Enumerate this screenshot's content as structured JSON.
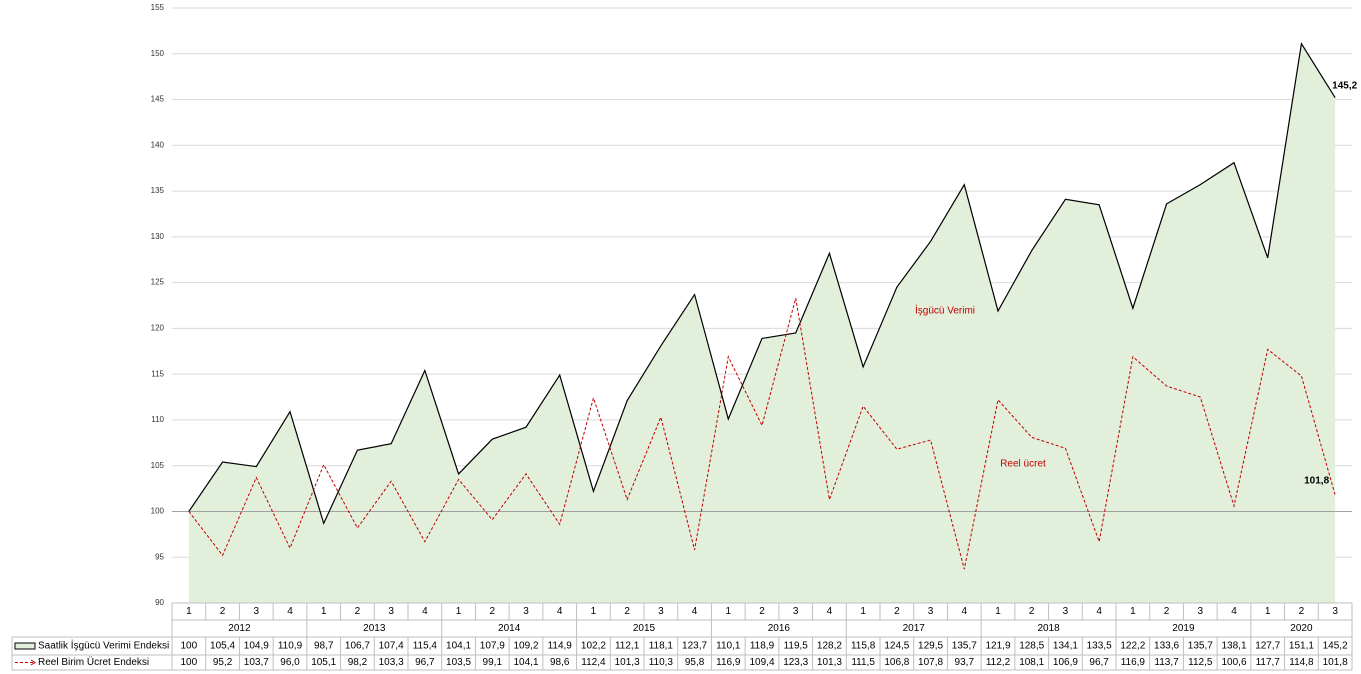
{
  "chart_data": {
    "type": "line",
    "categories": [
      "1",
      "2",
      "3",
      "4",
      "1",
      "2",
      "3",
      "4",
      "1",
      "2",
      "3",
      "4",
      "1",
      "2",
      "3",
      "4",
      "1",
      "2",
      "3",
      "4",
      "1",
      "2",
      "3",
      "4",
      "1",
      "2",
      "3",
      "4",
      "1",
      "2",
      "3",
      "4",
      "1",
      "2",
      "3"
    ],
    "groups": [
      "2012",
      "2013",
      "2014",
      "2015",
      "2016",
      "2017",
      "2018",
      "2019",
      "2020"
    ],
    "series": [
      {
        "name": "Saatlik İşgücü Verimi Endeksi",
        "color": "#000000",
        "fill": "#e2efda",
        "area": true,
        "values": [
          100,
          105.4,
          104.9,
          110.9,
          98.7,
          106.7,
          107.4,
          115.4,
          104.1,
          107.9,
          109.2,
          114.9,
          102.2,
          112.1,
          118.1,
          123.7,
          110.1,
          118.9,
          119.5,
          128.2,
          115.8,
          124.5,
          129.5,
          135.7,
          121.9,
          128.5,
          134.1,
          133.5,
          122.2,
          133.6,
          135.7,
          138.1,
          127.7,
          151.1,
          145.2
        ],
        "value_labels": [
          "100",
          "105,4",
          "104,9",
          "110,9",
          "98,7",
          "106,7",
          "107,4",
          "115,4",
          "104,1",
          "107,9",
          "109,2",
          "114,9",
          "102,2",
          "112,1",
          "118,1",
          "123,7",
          "110,1",
          "118,9",
          "119,5",
          "128,2",
          "115,8",
          "124,5",
          "129,5",
          "135,7",
          "121,9",
          "128,5",
          "134,1",
          "133,5",
          "122,2",
          "133,6",
          "135,7",
          "138,1",
          "127,7",
          "151,1",
          "145,2"
        ]
      },
      {
        "name": "Reel Birim Ücret Endeksi",
        "color": "#c00000",
        "dashed": true,
        "values": [
          100,
          95.2,
          103.7,
          96.0,
          105.1,
          98.2,
          103.3,
          96.7,
          103.5,
          99.1,
          104.1,
          98.6,
          112.4,
          101.3,
          110.3,
          95.8,
          116.9,
          109.4,
          123.3,
          101.3,
          111.5,
          106.8,
          107.8,
          93.7,
          112.2,
          108.1,
          106.9,
          96.7,
          116.9,
          113.7,
          112.5,
          100.6,
          117.7,
          114.8,
          101.8
        ],
        "value_labels": [
          "100",
          "95,2",
          "103,7",
          "96,0",
          "105,1",
          "98,2",
          "103,3",
          "96,7",
          "103,5",
          "99,1",
          "104,1",
          "98,6",
          "112,4",
          "101,3",
          "110,3",
          "95,8",
          "116,9",
          "109,4",
          "123,3",
          "101,3",
          "111,5",
          "106,8",
          "107,8",
          "93,7",
          "112,2",
          "108,1",
          "106,9",
          "96,7",
          "116,9",
          "113,7",
          "112,5",
          "100,6",
          "117,7",
          "114,8",
          "101,8"
        ]
      }
    ],
    "ylim": [
      90,
      155
    ],
    "yticks": [
      90,
      95,
      100,
      105,
      110,
      115,
      120,
      125,
      130,
      135,
      140,
      145,
      150,
      155
    ],
    "grid": true,
    "reference_line": 100,
    "annotations": [
      "İşgücü Verimi",
      "Reel ücret"
    ]
  }
}
